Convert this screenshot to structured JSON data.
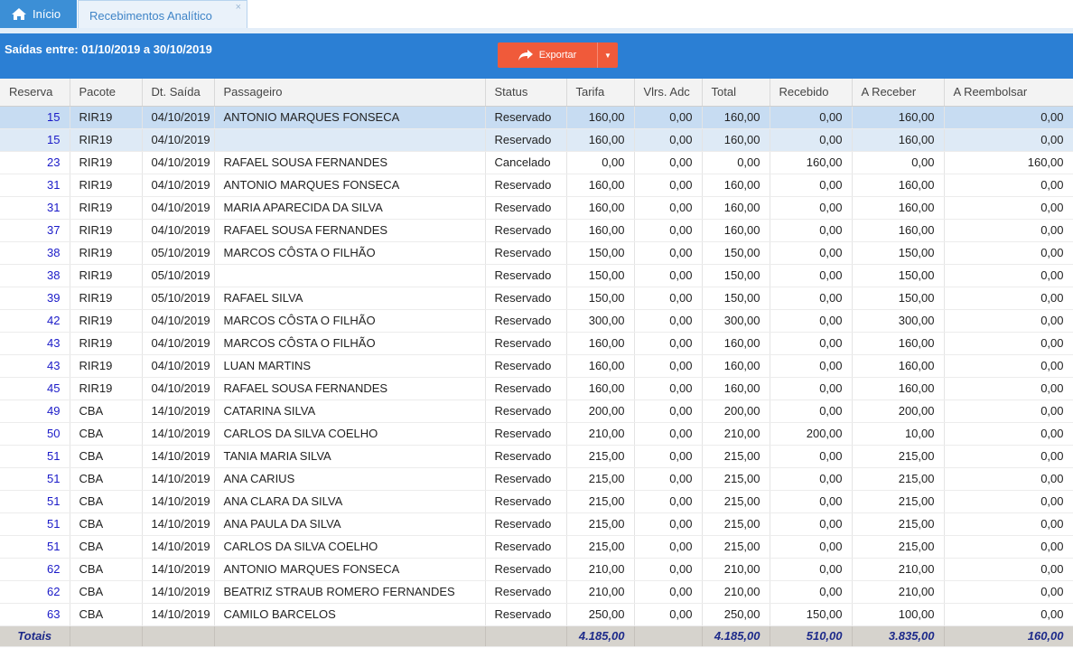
{
  "tabs": {
    "home_label": "Início",
    "active_label": "Recebimentos Analítico",
    "close_glyph": "×"
  },
  "header": {
    "range_label": "Saídas entre: 01/10/2019 a 30/10/2019",
    "export_label": "Exportar"
  },
  "colors": {
    "header_bg": "#2b7fd4",
    "export_bg": "#f05a3a",
    "link_blue": "#1a1ac8"
  },
  "table": {
    "columns": [
      "Reserva",
      "Pacote",
      "Dt. Saída",
      "Passageiro",
      "Status",
      "Tarifa",
      "Vlrs. Adc",
      "Total",
      "Recebido",
      "A Receber",
      "A Reembolsar"
    ],
    "rows": [
      [
        "15",
        "RIR19",
        "04/10/2019",
        "ANTONIO MARQUES FONSECA",
        "Reservado",
        "160,00",
        "0,00",
        "160,00",
        "0,00",
        "160,00",
        "0,00"
      ],
      [
        "15",
        "RIR19",
        "04/10/2019",
        "",
        "Reservado",
        "160,00",
        "0,00",
        "160,00",
        "0,00",
        "160,00",
        "0,00"
      ],
      [
        "23",
        "RIR19",
        "04/10/2019",
        "RAFAEL SOUSA FERNANDES",
        "Cancelado",
        "0,00",
        "0,00",
        "0,00",
        "160,00",
        "0,00",
        "160,00"
      ],
      [
        "31",
        "RIR19",
        "04/10/2019",
        "ANTONIO MARQUES FONSECA",
        "Reservado",
        "160,00",
        "0,00",
        "160,00",
        "0,00",
        "160,00",
        "0,00"
      ],
      [
        "31",
        "RIR19",
        "04/10/2019",
        "MARIA APARECIDA DA SILVA",
        "Reservado",
        "160,00",
        "0,00",
        "160,00",
        "0,00",
        "160,00",
        "0,00"
      ],
      [
        "37",
        "RIR19",
        "04/10/2019",
        "RAFAEL SOUSA FERNANDES",
        "Reservado",
        "160,00",
        "0,00",
        "160,00",
        "0,00",
        "160,00",
        "0,00"
      ],
      [
        "38",
        "RIR19",
        "05/10/2019",
        "MARCOS CÔSTA O FILHÃO",
        "Reservado",
        "150,00",
        "0,00",
        "150,00",
        "0,00",
        "150,00",
        "0,00"
      ],
      [
        "38",
        "RIR19",
        "05/10/2019",
        "",
        "Reservado",
        "150,00",
        "0,00",
        "150,00",
        "0,00",
        "150,00",
        "0,00"
      ],
      [
        "39",
        "RIR19",
        "05/10/2019",
        "RAFAEL SILVA",
        "Reservado",
        "150,00",
        "0,00",
        "150,00",
        "0,00",
        "150,00",
        "0,00"
      ],
      [
        "42",
        "RIR19",
        "04/10/2019",
        "MARCOS CÔSTA O FILHÃO",
        "Reservado",
        "300,00",
        "0,00",
        "300,00",
        "0,00",
        "300,00",
        "0,00"
      ],
      [
        "43",
        "RIR19",
        "04/10/2019",
        "MARCOS CÔSTA O FILHÃO",
        "Reservado",
        "160,00",
        "0,00",
        "160,00",
        "0,00",
        "160,00",
        "0,00"
      ],
      [
        "43",
        "RIR19",
        "04/10/2019",
        "LUAN MARTINS",
        "Reservado",
        "160,00",
        "0,00",
        "160,00",
        "0,00",
        "160,00",
        "0,00"
      ],
      [
        "45",
        "RIR19",
        "04/10/2019",
        "RAFAEL SOUSA FERNANDES",
        "Reservado",
        "160,00",
        "0,00",
        "160,00",
        "0,00",
        "160,00",
        "0,00"
      ],
      [
        "49",
        "CBA",
        "14/10/2019",
        "CATARINA SILVA",
        "Reservado",
        "200,00",
        "0,00",
        "200,00",
        "0,00",
        "200,00",
        "0,00"
      ],
      [
        "50",
        "CBA",
        "14/10/2019",
        "CARLOS DA SILVA COELHO",
        "Reservado",
        "210,00",
        "0,00",
        "210,00",
        "200,00",
        "10,00",
        "0,00"
      ],
      [
        "51",
        "CBA",
        "14/10/2019",
        "TANIA MARIA SILVA",
        "Reservado",
        "215,00",
        "0,00",
        "215,00",
        "0,00",
        "215,00",
        "0,00"
      ],
      [
        "51",
        "CBA",
        "14/10/2019",
        "ANA CARIUS",
        "Reservado",
        "215,00",
        "0,00",
        "215,00",
        "0,00",
        "215,00",
        "0,00"
      ],
      [
        "51",
        "CBA",
        "14/10/2019",
        "ANA CLARA DA SILVA",
        "Reservado",
        "215,00",
        "0,00",
        "215,00",
        "0,00",
        "215,00",
        "0,00"
      ],
      [
        "51",
        "CBA",
        "14/10/2019",
        "ANA PAULA DA SILVA",
        "Reservado",
        "215,00",
        "0,00",
        "215,00",
        "0,00",
        "215,00",
        "0,00"
      ],
      [
        "51",
        "CBA",
        "14/10/2019",
        "CARLOS DA SILVA COELHO",
        "Reservado",
        "215,00",
        "0,00",
        "215,00",
        "0,00",
        "215,00",
        "0,00"
      ],
      [
        "62",
        "CBA",
        "14/10/2019",
        "ANTONIO MARQUES FONSECA",
        "Reservado",
        "210,00",
        "0,00",
        "210,00",
        "0,00",
        "210,00",
        "0,00"
      ],
      [
        "62",
        "CBA",
        "14/10/2019",
        "BEATRIZ STRAUB ROMERO FERNANDES",
        "Reservado",
        "210,00",
        "0,00",
        "210,00",
        "0,00",
        "210,00",
        "0,00"
      ],
      [
        "63",
        "CBA",
        "14/10/2019",
        "CAMILO BARCELOS",
        "Reservado",
        "250,00",
        "0,00",
        "250,00",
        "150,00",
        "100,00",
        "0,00"
      ]
    ],
    "selected_row_index": 0,
    "totals": {
      "label": "Totais",
      "tarifa": "4.185,00",
      "vlrs_adc": "",
      "total": "4.185,00",
      "recebido": "510,00",
      "a_receber": "3.835,00",
      "a_reembolsar": "160,00"
    }
  }
}
